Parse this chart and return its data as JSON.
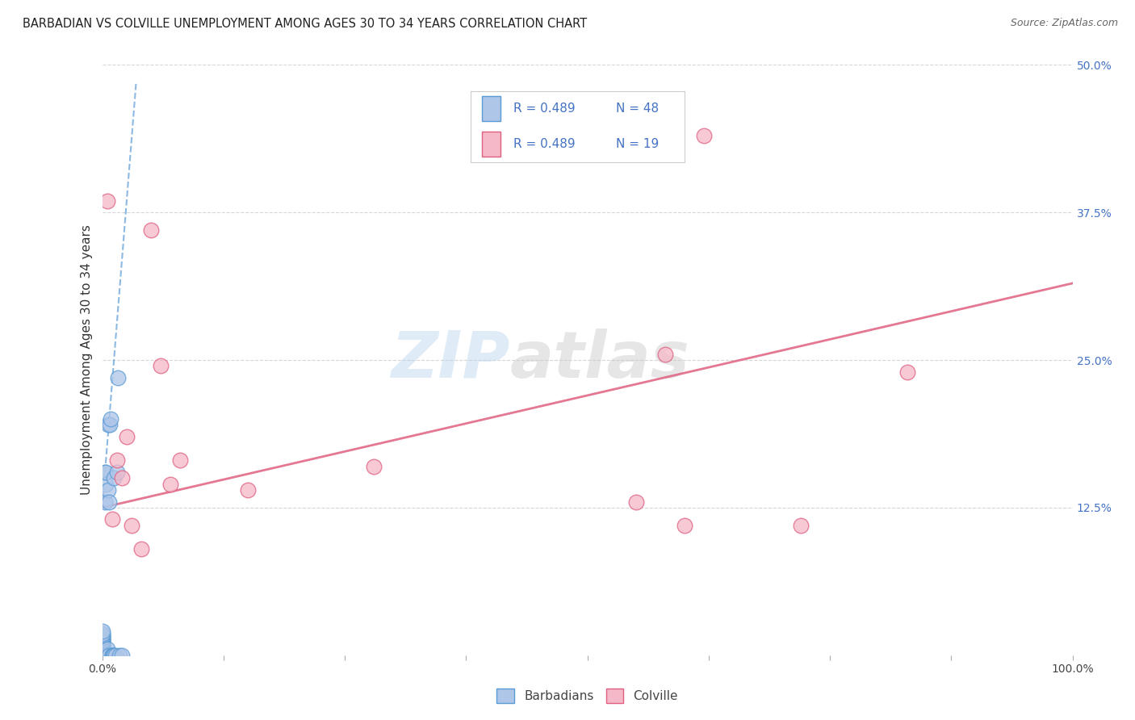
{
  "title": "BARBADIAN VS COLVILLE UNEMPLOYMENT AMONG AGES 30 TO 34 YEARS CORRELATION CHART",
  "source": "Source: ZipAtlas.com",
  "ylabel": "Unemployment Among Ages 30 to 34 years",
  "xlim": [
    0,
    1.0
  ],
  "ylim": [
    0,
    0.5
  ],
  "xticks": [
    0.0,
    0.125,
    0.25,
    0.375,
    0.5,
    0.625,
    0.75,
    0.875,
    1.0
  ],
  "xtick_labels": [
    "0.0%",
    "",
    "",
    "",
    "",
    "",
    "",
    "",
    "100.0%"
  ],
  "yticks": [
    0.0,
    0.125,
    0.25,
    0.375,
    0.5
  ],
  "ytick_labels": [
    "",
    "12.5%",
    "25.0%",
    "37.5%",
    "50.0%"
  ],
  "barbadian_color": "#aec6e8",
  "barbadian_edge": "#5b9bd5",
  "colville_color": "#f4b8c8",
  "colville_edge": "#e06080",
  "barbadian_R": 0.489,
  "barbadian_N": 48,
  "colville_R": 0.489,
  "colville_N": 19,
  "barbadian_x": [
    0.0,
    0.0,
    0.0,
    0.0,
    0.0,
    0.0,
    0.0,
    0.0,
    0.0,
    0.0,
    0.0,
    0.0,
    0.0,
    0.0,
    0.0,
    0.0,
    0.0,
    0.0,
    0.0,
    0.0,
    0.0,
    0.0,
    0.0,
    0.0,
    0.0,
    0.0,
    0.003,
    0.003,
    0.004,
    0.004,
    0.005,
    0.005,
    0.006,
    0.006,
    0.007,
    0.007,
    0.008,
    0.009,
    0.01,
    0.01,
    0.011,
    0.012,
    0.012,
    0.014,
    0.015,
    0.016,
    0.018,
    0.02
  ],
  "barbadian_y": [
    0.0,
    0.0,
    0.0,
    0.0,
    0.0,
    0.0,
    0.0,
    0.0,
    0.005,
    0.005,
    0.007,
    0.007,
    0.008,
    0.008,
    0.01,
    0.01,
    0.011,
    0.012,
    0.013,
    0.013,
    0.015,
    0.015,
    0.016,
    0.017,
    0.018,
    0.02,
    0.13,
    0.155,
    0.145,
    0.155,
    0.0,
    0.005,
    0.14,
    0.195,
    0.0,
    0.13,
    0.195,
    0.2,
    0.0,
    0.0,
    0.0,
    0.0,
    0.15,
    0.0,
    0.155,
    0.235,
    0.0,
    0.0
  ],
  "colville_x": [
    0.005,
    0.01,
    0.015,
    0.02,
    0.025,
    0.03,
    0.04,
    0.05,
    0.06,
    0.07,
    0.08,
    0.15,
    0.28,
    0.55,
    0.58,
    0.6,
    0.62,
    0.72,
    0.83
  ],
  "colville_y": [
    0.385,
    0.115,
    0.165,
    0.15,
    0.185,
    0.11,
    0.09,
    0.36,
    0.245,
    0.145,
    0.165,
    0.14,
    0.16,
    0.13,
    0.255,
    0.11,
    0.44,
    0.11,
    0.24
  ],
  "blue_trend_x0": 0.0,
  "blue_trend_x1": 0.035,
  "blue_trend_y0": 0.125,
  "blue_trend_y1": 0.485,
  "pink_trend_x0": 0.0,
  "pink_trend_x1": 1.0,
  "pink_trend_y0": 0.125,
  "pink_trend_y1": 0.315,
  "watermark_zip": "ZIP",
  "watermark_atlas": "atlas",
  "background_color": "#ffffff",
  "grid_color": "#cccccc",
  "legend_color": "#4472c4",
  "tick_color": "#4472c4"
}
